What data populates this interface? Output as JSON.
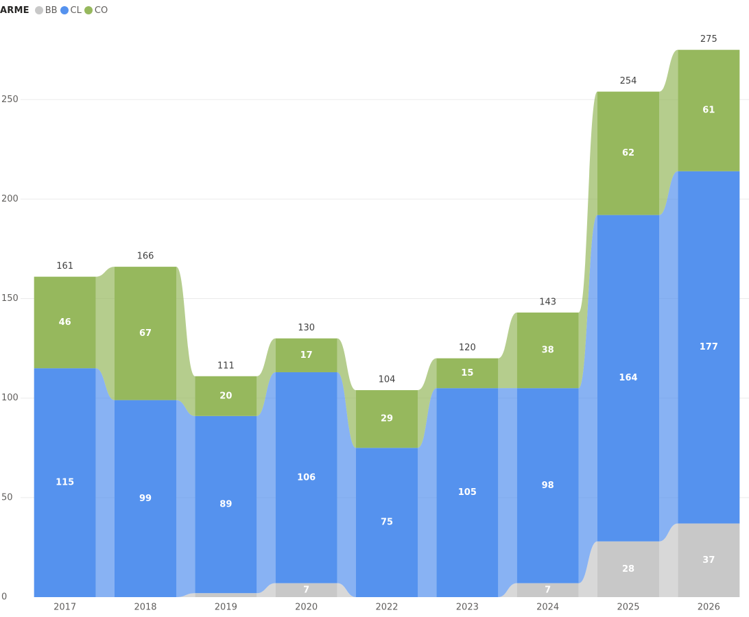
{
  "chart_data": {
    "type": "ribbon",
    "legend": {
      "title": "ARME",
      "items": [
        {
          "name": "BB",
          "color": "#c8c8c8"
        },
        {
          "name": "CL",
          "color": "#5592ee"
        },
        {
          "name": "CO",
          "color": "#96b85d"
        }
      ]
    },
    "categories": [
      "2017",
      "2018",
      "2019",
      "2020",
      "2022",
      "2023",
      "2024",
      "2025",
      "2026"
    ],
    "series": [
      {
        "name": "BB",
        "color": "#c8c8c8",
        "values": [
          0,
          0,
          2,
          7,
          0,
          0,
          7,
          28,
          37
        ],
        "labels": [
          "",
          "",
          "",
          "7",
          "",
          "",
          "7",
          "28",
          "37"
        ]
      },
      {
        "name": "CL",
        "color": "#5592ee",
        "values": [
          115,
          99,
          89,
          106,
          75,
          105,
          98,
          164,
          177
        ],
        "labels": [
          "115",
          "99",
          "89",
          "106",
          "75",
          "105",
          "98",
          "164",
          "177"
        ]
      },
      {
        "name": "CO",
        "color": "#96b85d",
        "values": [
          46,
          67,
          20,
          17,
          29,
          15,
          38,
          62,
          61
        ],
        "labels": [
          "46",
          "67",
          "20",
          "17",
          "29",
          "15",
          "38",
          "62",
          "61"
        ]
      }
    ],
    "totals": [
      "161",
      "166",
      "111",
      "130",
      "104",
      "120",
      "143",
      "254",
      "275"
    ],
    "y_ticks": [
      "0",
      "50",
      "100",
      "150",
      "200",
      "250"
    ],
    "ylim": [
      0,
      275
    ],
    "grid": true,
    "legend_position": "top-left",
    "title": "",
    "xlabel": "",
    "ylabel": ""
  }
}
